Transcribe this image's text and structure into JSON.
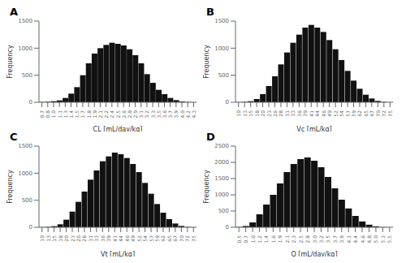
{
  "chart_data": [
    {
      "type": "bar",
      "title": "A",
      "x_label": "CL [mL/day/kg]",
      "y_label": "Frequency",
      "categories": [
        "0.7",
        "0.8",
        "1.0",
        "1.1",
        "1.3",
        "1.4",
        "1.5",
        "1.7",
        "1.8",
        "1.9",
        "2.1",
        "2.2",
        "2.4",
        "2.5",
        "2.6",
        "2.8",
        "2.9",
        "3.1",
        "3.2",
        "3.3",
        "3.5",
        "3.6",
        "3.7",
        "3.9",
        "4.0",
        "4.2",
        "4.3"
      ],
      "values": [
        5,
        10,
        20,
        35,
        80,
        160,
        280,
        500,
        720,
        900,
        1000,
        1060,
        1100,
        1080,
        1050,
        980,
        870,
        720,
        520,
        360,
        230,
        150,
        80,
        40,
        15,
        6,
        2
      ],
      "color": "#111111",
      "ylim": [
        0,
        1500
      ],
      "yticks": [
        0,
        500,
        1000,
        1500
      ]
    },
    {
      "type": "bar",
      "title": "B",
      "x_label": "Vc [mL/kg]",
      "y_label": "Frequency",
      "categories": [
        "10",
        "13",
        "15",
        "18",
        "20",
        "23",
        "26",
        "28",
        "31",
        "33",
        "36",
        "39",
        "41",
        "44",
        "46",
        "49",
        "52",
        "54",
        "57",
        "59",
        "62",
        "65",
        "67",
        "70",
        "72",
        "75"
      ],
      "values": [
        3,
        8,
        20,
        60,
        150,
        300,
        480,
        700,
        920,
        1100,
        1250,
        1380,
        1430,
        1380,
        1300,
        1150,
        980,
        780,
        580,
        400,
        250,
        140,
        70,
        25,
        8,
        2
      ],
      "color": "#111111",
      "ylim": [
        0,
        1500
      ],
      "yticks": [
        0,
        500,
        1000,
        1500
      ]
    },
    {
      "type": "bar",
      "title": "C",
      "x_label": "Vt [mL/kg]",
      "y_label": "Frequency",
      "categories": [
        "10",
        "13",
        "15",
        "18",
        "20",
        "23",
        "26",
        "28",
        "31",
        "33",
        "36",
        "39",
        "41",
        "44",
        "46",
        "49",
        "52",
        "54",
        "57",
        "59",
        "62",
        "65",
        "67",
        "70",
        "72",
        "75"
      ],
      "values": [
        3,
        8,
        20,
        55,
        140,
        290,
        470,
        660,
        880,
        1050,
        1220,
        1310,
        1380,
        1350,
        1280,
        1170,
        1020,
        820,
        620,
        430,
        270,
        150,
        70,
        25,
        7,
        2
      ],
      "color": "#111111",
      "ylim": [
        0,
        1500
      ],
      "yticks": [
        0,
        500,
        1000,
        1500
      ]
    },
    {
      "type": "bar",
      "title": "D",
      "x_label": "Q [mL/day/kg]",
      "y_label": "Frequency",
      "categories": [
        "0.5",
        "0.7",
        "1.0",
        "1.2",
        "1.4",
        "1.6",
        "1.9",
        "2.1",
        "2.3",
        "2.5",
        "2.8",
        "3.0",
        "3.2",
        "3.5",
        "3.7",
        "3.9",
        "4.1",
        "4.4",
        "4.6",
        "4.8",
        "5.0",
        "5.3",
        "5.5"
      ],
      "values": [
        10,
        40,
        150,
        400,
        700,
        1000,
        1350,
        1700,
        1950,
        2100,
        2150,
        2050,
        1850,
        1550,
        1200,
        850,
        580,
        350,
        180,
        80,
        30,
        8,
        2
      ],
      "color": "#111111",
      "ylim": [
        0,
        2500
      ],
      "yticks": [
        0,
        500,
        1000,
        1500,
        2000,
        2500
      ]
    }
  ]
}
